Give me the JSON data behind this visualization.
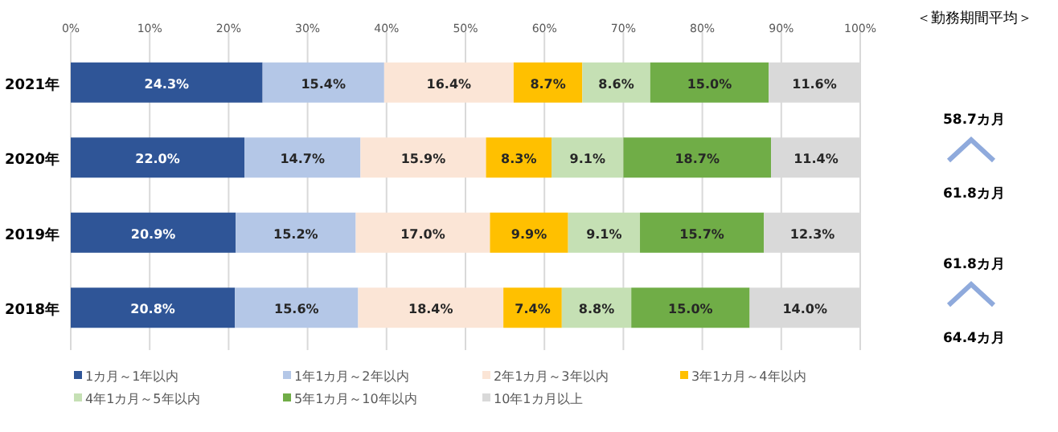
{
  "chart_data": {
    "type": "bar",
    "orientation": "horizontal",
    "stacked": true,
    "categories": [
      "2021年",
      "2020年",
      "2019年",
      "2018年"
    ],
    "series": [
      {
        "name": "1カ月～1年以内",
        "color": "#2f5597",
        "values": [
          24.3,
          22.0,
          20.9,
          20.8
        ],
        "value_labels": [
          "24.3%",
          "22.0%",
          "20.9%",
          "20.8%"
        ]
      },
      {
        "name": "1年1カ月～2年以内",
        "color": "#b4c7e7",
        "values": [
          15.4,
          14.7,
          15.2,
          15.6
        ],
        "value_labels": [
          "15.4%",
          "14.7%",
          "15.2%",
          "15.6%"
        ]
      },
      {
        "name": "2年1カ月～3年以内",
        "color": "#fbe5d6",
        "values": [
          16.4,
          15.9,
          17.0,
          18.4
        ],
        "value_labels": [
          "16.4%",
          "15.9%",
          "17.0%",
          "18.4%"
        ]
      },
      {
        "name": "3年1カ月～4年以内",
        "color": "#ffc000",
        "values": [
          8.7,
          8.3,
          9.9,
          7.4
        ],
        "value_labels": [
          "8.7%",
          "8.3%",
          "9.9%",
          "7.4%"
        ]
      },
      {
        "name": "4年1カ月～5年以内",
        "color": "#c5e0b4",
        "values": [
          8.6,
          9.1,
          9.1,
          8.8
        ],
        "value_labels": [
          "8.6%",
          "9.1%",
          "9.1%",
          "8.8%"
        ]
      },
      {
        "name": "5年1カ月～10年以内",
        "color": "#70ad47",
        "values": [
          15.0,
          18.7,
          15.7,
          15.0
        ],
        "value_labels": [
          "15.0%",
          "18.7%",
          "15.7%",
          "15.0%"
        ]
      },
      {
        "name": "10年1カ月以上",
        "color": "#d9d9d9",
        "values": [
          11.6,
          11.4,
          12.3,
          14.0
        ],
        "value_labels": [
          "11.6%",
          "11.4%",
          "12.3%",
          "14.0%"
        ]
      }
    ],
    "xlim": [
      0,
      100
    ],
    "xticks": [
      {
        "value": 0,
        "label": "0%"
      },
      {
        "value": 10,
        "label": "10%"
      },
      {
        "value": 20,
        "label": "20%"
      },
      {
        "value": 30,
        "label": "30%"
      },
      {
        "value": 40,
        "label": "40%"
      },
      {
        "value": 50,
        "label": "50%"
      },
      {
        "value": 60,
        "label": "60%"
      },
      {
        "value": 70,
        "label": "70%"
      },
      {
        "value": 80,
        "label": "80%"
      },
      {
        "value": 90,
        "label": "90%"
      },
      {
        "value": 100,
        "label": "100%"
      }
    ],
    "grid": "x",
    "legend": "bottom",
    "annotations": [
      "＜勤務期間平均＞",
      "58.7カ月",
      "61.8カ月",
      "61.8カ月",
      "64.4カ月"
    ]
  }
}
